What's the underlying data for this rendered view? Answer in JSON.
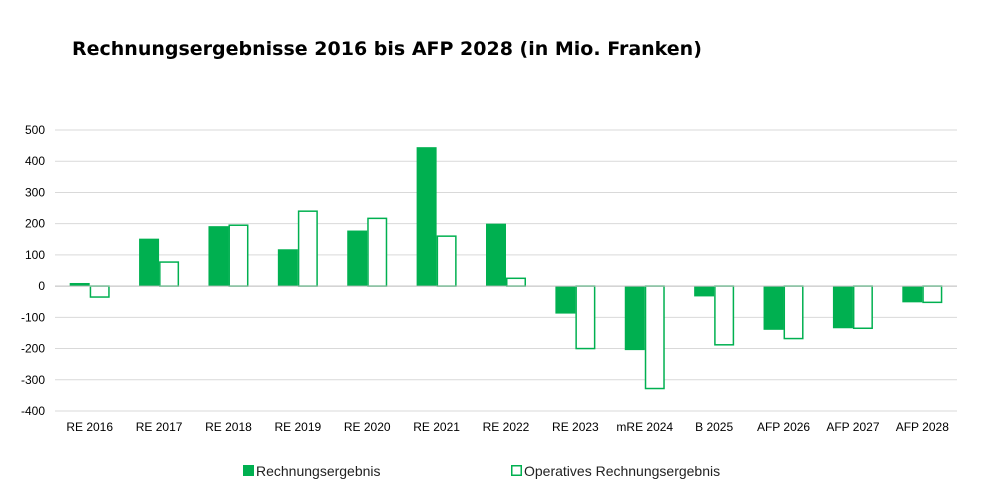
{
  "title": "Rechnungsergebnisse 2016 bis AFP 2028 (in Mio. Franken)",
  "chart_data": {
    "type": "bar",
    "title": "Rechnungsergebnisse 2016 bis AFP 2028 (in Mio. Franken)",
    "xlabel": "",
    "ylabel": "",
    "categories": [
      "RE 2016",
      "RE 2017",
      "RE 2018",
      "RE 2019",
      "RE 2020",
      "RE 2021",
      "RE 2022",
      "RE 2023",
      "mRE 2024",
      "B 2025",
      "AFP 2026",
      "AFP 2027",
      "AFP 2028"
    ],
    "series": [
      {
        "name": "Rechnungsergebnis",
        "style": "filled",
        "color": "#00b050",
        "values": [
          10,
          152,
          192,
          118,
          178,
          445,
          200,
          -88,
          -205,
          -33,
          -140,
          -135,
          -52
        ]
      },
      {
        "name": "Operatives Rechnungsergebnis",
        "style": "outline",
        "color": "#00b050",
        "values": [
          -35,
          77,
          195,
          240,
          217,
          160,
          25,
          -200,
          -328,
          -188,
          -168,
          -135,
          -52
        ]
      }
    ],
    "ylim": [
      -400,
      500
    ],
    "yticks": [
      500,
      400,
      300,
      200,
      100,
      0,
      -100,
      -200,
      -300,
      -400
    ],
    "grid": true,
    "legend_position": "bottom"
  }
}
